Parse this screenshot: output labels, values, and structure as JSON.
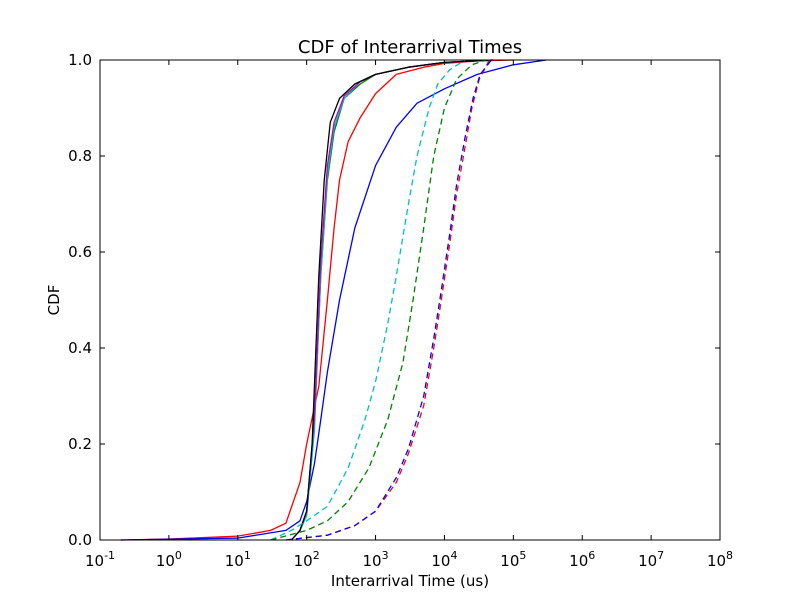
{
  "chart_data": {
    "type": "line",
    "title": "CDF of Interarrival Times",
    "xlabel": "Interarrival Time (us)",
    "ylabel": "CDF",
    "x_scale": "log",
    "xlim": [
      0.1,
      100000000
    ],
    "ylim": [
      0,
      1
    ],
    "x_ticks": [
      {
        "value": 0.1,
        "base": "10",
        "exp": "-1"
      },
      {
        "value": 1,
        "base": "10",
        "exp": "0"
      },
      {
        "value": 10,
        "base": "10",
        "exp": "1"
      },
      {
        "value": 100,
        "base": "10",
        "exp": "2"
      },
      {
        "value": 1000,
        "base": "10",
        "exp": "3"
      },
      {
        "value": 10000,
        "base": "10",
        "exp": "4"
      },
      {
        "value": 100000,
        "base": "10",
        "exp": "5"
      },
      {
        "value": 1000000,
        "base": "10",
        "exp": "6"
      },
      {
        "value": 10000000,
        "base": "10",
        "exp": "7"
      },
      {
        "value": 100000000,
        "base": "10",
        "exp": "8"
      }
    ],
    "y_ticks": [
      {
        "value": 0.0,
        "label": "0.0"
      },
      {
        "value": 0.2,
        "label": "0.2"
      },
      {
        "value": 0.4,
        "label": "0.4"
      },
      {
        "value": 0.6,
        "label": "0.6"
      },
      {
        "value": 0.8,
        "label": "0.8"
      },
      {
        "value": 1.0,
        "label": "1.0"
      }
    ],
    "grid": false,
    "legend": "none",
    "series": [
      {
        "color": "#ff0000",
        "style": "solid",
        "points": [
          [
            0.2,
            0.0
          ],
          [
            1,
            0.002
          ],
          [
            10,
            0.008
          ],
          [
            30,
            0.02
          ],
          [
            50,
            0.035
          ],
          [
            80,
            0.12
          ],
          [
            100,
            0.2
          ],
          [
            150,
            0.32
          ],
          [
            200,
            0.5
          ],
          [
            250,
            0.65
          ],
          [
            300,
            0.75
          ],
          [
            400,
            0.83
          ],
          [
            600,
            0.88
          ],
          [
            1000,
            0.93
          ],
          [
            2000,
            0.97
          ],
          [
            5000,
            0.985
          ],
          [
            10000,
            0.993
          ],
          [
            30000,
            0.998
          ],
          [
            100000,
            1.0
          ]
        ]
      },
      {
        "color": "#0000ff",
        "style": "solid",
        "points": [
          [
            0.2,
            0.0
          ],
          [
            10,
            0.004
          ],
          [
            50,
            0.02
          ],
          [
            80,
            0.04
          ],
          [
            100,
            0.08
          ],
          [
            130,
            0.16
          ],
          [
            160,
            0.25
          ],
          [
            200,
            0.35
          ],
          [
            300,
            0.5
          ],
          [
            500,
            0.65
          ],
          [
            1000,
            0.78
          ],
          [
            2000,
            0.86
          ],
          [
            4000,
            0.91
          ],
          [
            10000,
            0.94
          ],
          [
            30000,
            0.97
          ],
          [
            100000,
            0.99
          ],
          [
            300000,
            1.0
          ]
        ]
      },
      {
        "color": "#008000",
        "style": "solid",
        "points": [
          [
            60,
            0.0
          ],
          [
            80,
            0.02
          ],
          [
            100,
            0.06
          ],
          [
            130,
            0.25
          ],
          [
            160,
            0.55
          ],
          [
            200,
            0.75
          ],
          [
            250,
            0.85
          ],
          [
            350,
            0.92
          ],
          [
            600,
            0.95
          ],
          [
            1000,
            0.97
          ],
          [
            3000,
            0.985
          ],
          [
            10000,
            0.995
          ],
          [
            50000,
            1.0
          ]
        ]
      },
      {
        "color": "#00bfbf",
        "style": "solid",
        "points": [
          [
            60,
            0.0
          ],
          [
            80,
            0.02
          ],
          [
            100,
            0.05
          ],
          [
            130,
            0.23
          ],
          [
            160,
            0.55
          ],
          [
            200,
            0.76
          ],
          [
            250,
            0.86
          ],
          [
            350,
            0.92
          ],
          [
            600,
            0.955
          ],
          [
            1000,
            0.97
          ],
          [
            3000,
            0.985
          ],
          [
            10000,
            0.995
          ],
          [
            50000,
            1.0
          ]
        ]
      },
      {
        "color": "#bf00bf",
        "style": "solid",
        "points": [
          [
            60,
            0.0
          ],
          [
            80,
            0.02
          ],
          [
            100,
            0.06
          ],
          [
            130,
            0.26
          ],
          [
            160,
            0.58
          ],
          [
            200,
            0.78
          ],
          [
            250,
            0.87
          ],
          [
            350,
            0.925
          ],
          [
            600,
            0.955
          ],
          [
            1000,
            0.97
          ],
          [
            3000,
            0.985
          ],
          [
            10000,
            0.995
          ],
          [
            50000,
            1.0
          ]
        ]
      },
      {
        "color": "#000000",
        "style": "solid",
        "points": [
          [
            60,
            0.0
          ],
          [
            80,
            0.02
          ],
          [
            100,
            0.06
          ],
          [
            120,
            0.2
          ],
          [
            150,
            0.55
          ],
          [
            180,
            0.75
          ],
          [
            220,
            0.87
          ],
          [
            300,
            0.92
          ],
          [
            500,
            0.95
          ],
          [
            1000,
            0.97
          ],
          [
            3000,
            0.985
          ],
          [
            10000,
            0.995
          ],
          [
            50000,
            1.0
          ]
        ]
      },
      {
        "color": "#00bfbf",
        "style": "dashed",
        "points": [
          [
            30,
            0.0
          ],
          [
            60,
            0.02
          ],
          [
            100,
            0.04
          ],
          [
            200,
            0.07
          ],
          [
            400,
            0.15
          ],
          [
            700,
            0.25
          ],
          [
            1000,
            0.33
          ],
          [
            1500,
            0.45
          ],
          [
            2000,
            0.55
          ],
          [
            3000,
            0.7
          ],
          [
            4000,
            0.8
          ],
          [
            6000,
            0.9
          ],
          [
            8000,
            0.95
          ],
          [
            12000,
            0.98
          ],
          [
            20000,
            1.0
          ]
        ]
      },
      {
        "color": "#008000",
        "style": "dashed",
        "points": [
          [
            30,
            0.0
          ],
          [
            100,
            0.02
          ],
          [
            200,
            0.04
          ],
          [
            400,
            0.08
          ],
          [
            800,
            0.15
          ],
          [
            1500,
            0.25
          ],
          [
            2500,
            0.37
          ],
          [
            3500,
            0.5
          ],
          [
            5000,
            0.65
          ],
          [
            7000,
            0.8
          ],
          [
            10000,
            0.9
          ],
          [
            15000,
            0.96
          ],
          [
            25000,
            0.99
          ],
          [
            40000,
            1.0
          ]
        ]
      },
      {
        "color": "#ff0000",
        "style": "dashed",
        "points": [
          [
            50,
            0.0
          ],
          [
            200,
            0.01
          ],
          [
            500,
            0.03
          ],
          [
            1000,
            0.06
          ],
          [
            2000,
            0.12
          ],
          [
            3000,
            0.18
          ],
          [
            5000,
            0.28
          ],
          [
            7000,
            0.4
          ],
          [
            9000,
            0.5
          ],
          [
            12000,
            0.62
          ],
          [
            15000,
            0.72
          ],
          [
            20000,
            0.82
          ],
          [
            25000,
            0.9
          ],
          [
            32000,
            0.96
          ],
          [
            45000,
            1.0
          ]
        ]
      },
      {
        "color": "#0000ff",
        "style": "dashed",
        "points": [
          [
            50,
            0.0
          ],
          [
            200,
            0.01
          ],
          [
            500,
            0.03
          ],
          [
            1000,
            0.06
          ],
          [
            2000,
            0.13
          ],
          [
            3000,
            0.19
          ],
          [
            5000,
            0.3
          ],
          [
            7000,
            0.42
          ],
          [
            9000,
            0.52
          ],
          [
            12000,
            0.64
          ],
          [
            15000,
            0.74
          ],
          [
            20000,
            0.84
          ],
          [
            26000,
            0.92
          ],
          [
            33000,
            0.97
          ],
          [
            48000,
            1.0
          ]
        ]
      }
    ]
  }
}
